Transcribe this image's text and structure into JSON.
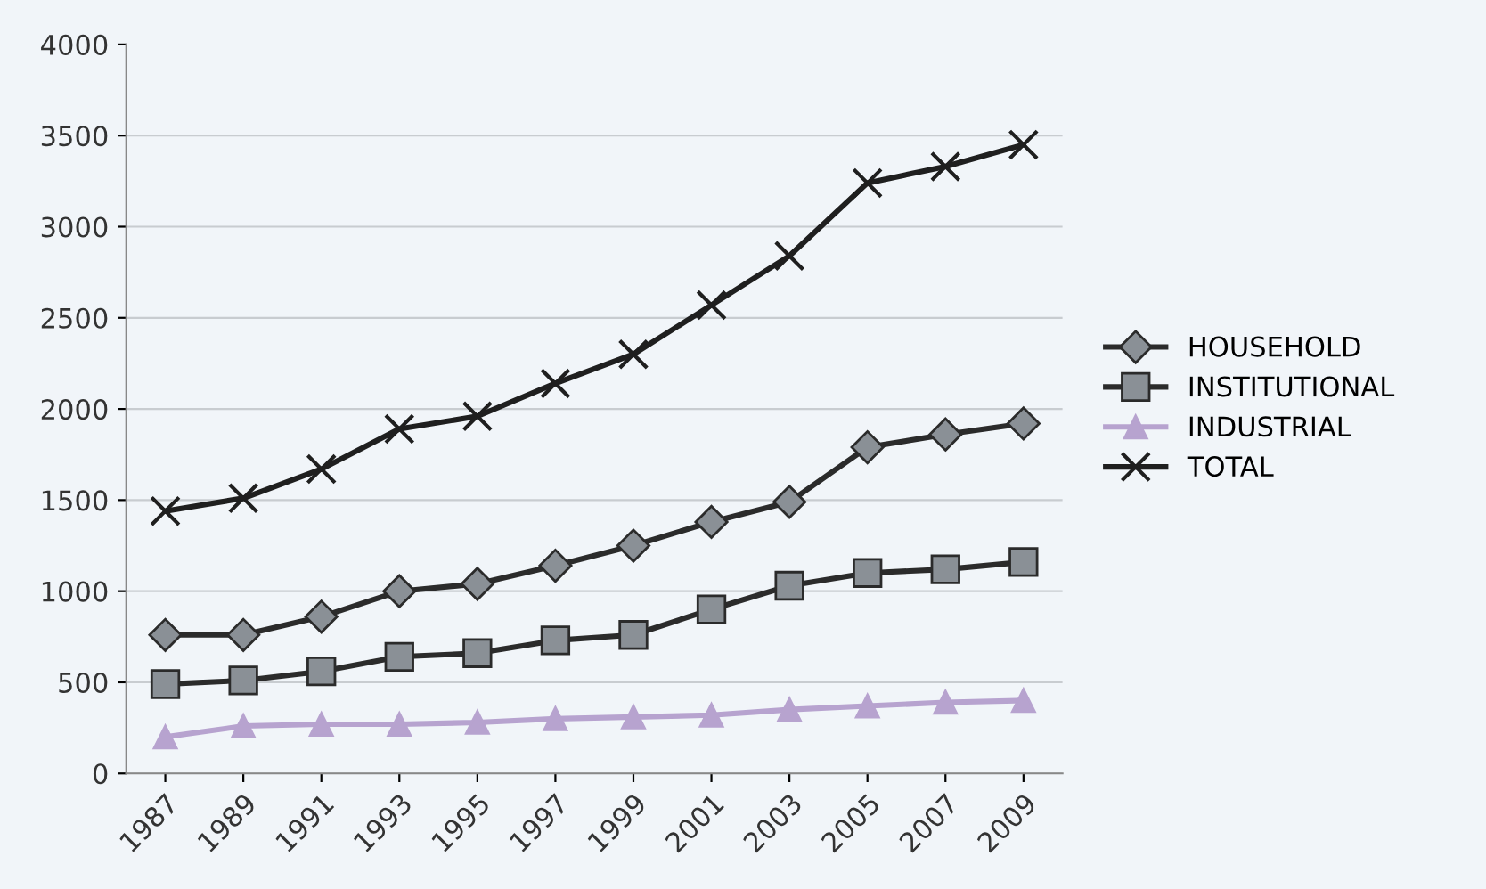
{
  "chart_data": {
    "type": "line",
    "categories": [
      "1987",
      "1989",
      "1991",
      "1993",
      "1995",
      "1997",
      "1999",
      "2001",
      "2003",
      "2005",
      "2007",
      "2009"
    ],
    "series": [
      {
        "name": "HOUSEHOLD",
        "color": "#2b2b2b",
        "marker": "diamond",
        "values": [
          760,
          760,
          860,
          1000,
          1040,
          1140,
          1250,
          1380,
          1490,
          1790,
          1860,
          1920
        ]
      },
      {
        "name": "INSTITUTIONAL",
        "color": "#2b2b2b",
        "marker": "square",
        "values": [
          490,
          510,
          560,
          640,
          660,
          730,
          760,
          900,
          1030,
          1100,
          1120,
          1160
        ]
      },
      {
        "name": "INDUSTRIAL",
        "color": "#b7a3cf",
        "marker": "triangle",
        "values": [
          200,
          260,
          270,
          270,
          280,
          300,
          310,
          320,
          350,
          370,
          390,
          400
        ]
      },
      {
        "name": "TOTAL",
        "color": "#1f1f1f",
        "marker": "cross",
        "values": [
          1440,
          1510,
          1670,
          1890,
          1960,
          2140,
          2300,
          2570,
          2840,
          3240,
          3330,
          3450
        ]
      }
    ],
    "ylim": [
      0,
      4000
    ],
    "yticks": [
      0,
      500,
      1000,
      1500,
      2000,
      2500,
      3000,
      3500,
      4000
    ],
    "grid": "y",
    "legend": "right"
  }
}
